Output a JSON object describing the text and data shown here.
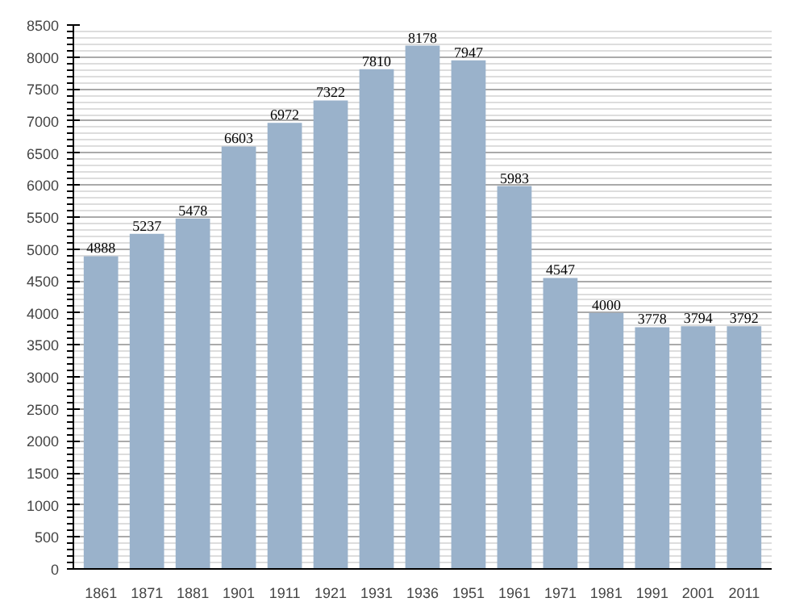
{
  "chart_data": {
    "type": "bar",
    "categories": [
      "1861",
      "1871",
      "1881",
      "1901",
      "1911",
      "1921",
      "1931",
      "1936",
      "1951",
      "1961",
      "1971",
      "1981",
      "1991",
      "2001",
      "2011"
    ],
    "values": [
      4888,
      5237,
      5478,
      6603,
      6972,
      7322,
      7810,
      8178,
      7947,
      5983,
      4547,
      4000,
      3778,
      3794,
      3792
    ],
    "color": "#9ab2cb",
    "ylim": [
      0,
      8500
    ],
    "yticks": [
      0,
      500,
      1000,
      1500,
      2000,
      2500,
      3000,
      3500,
      4000,
      4500,
      5000,
      5500,
      6000,
      6500,
      7000,
      7500,
      8000,
      8500
    ],
    "grid": "y",
    "data_labels": true
  }
}
